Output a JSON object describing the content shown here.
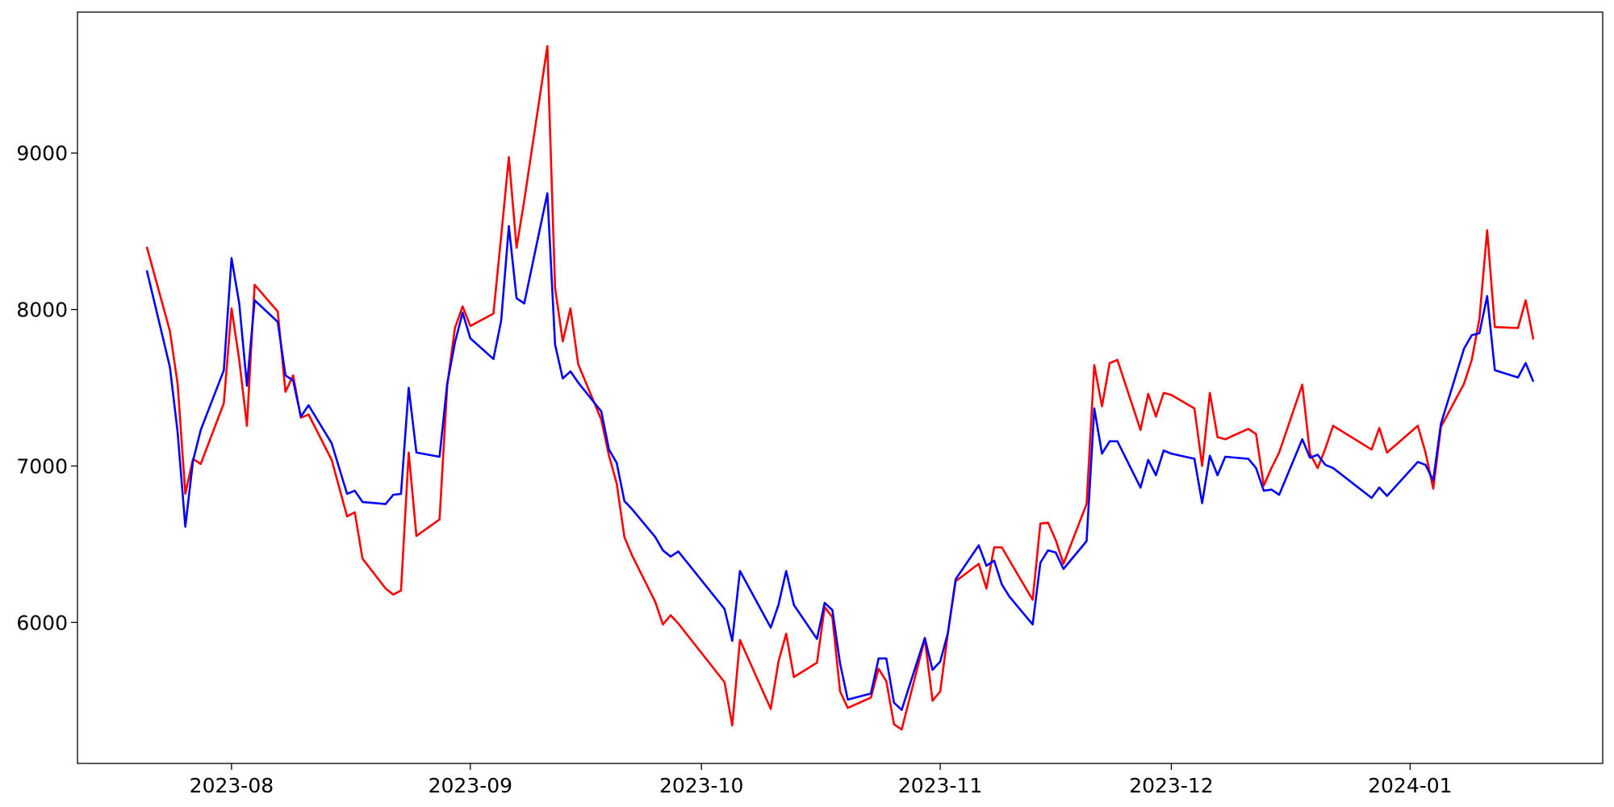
{
  "chart_data": {
    "type": "line",
    "x": [
      "2023-07-21",
      "2023-07-24",
      "2023-07-25",
      "2023-07-26",
      "2023-07-27",
      "2023-07-28",
      "2023-07-31",
      "2023-08-01",
      "2023-08-02",
      "2023-08-03",
      "2023-08-04",
      "2023-08-07",
      "2023-08-08",
      "2023-08-09",
      "2023-08-10",
      "2023-08-11",
      "2023-08-14",
      "2023-08-16",
      "2023-08-17",
      "2023-08-18",
      "2023-08-21",
      "2023-08-22",
      "2023-08-23",
      "2023-08-24",
      "2023-08-25",
      "2023-08-28",
      "2023-08-29",
      "2023-08-30",
      "2023-08-31",
      "2023-09-01",
      "2023-09-04",
      "2023-09-05",
      "2023-09-06",
      "2023-09-07",
      "2023-09-08",
      "2023-09-11",
      "2023-09-12",
      "2023-09-13",
      "2023-09-14",
      "2023-09-15",
      "2023-09-18",
      "2023-09-19",
      "2023-09-20",
      "2023-09-21",
      "2023-09-22",
      "2023-09-25",
      "2023-09-26",
      "2023-09-27",
      "2023-09-28",
      "2023-10-04",
      "2023-10-05",
      "2023-10-06",
      "2023-10-10",
      "2023-10-11",
      "2023-10-12",
      "2023-10-13",
      "2023-10-16",
      "2023-10-17",
      "2023-10-18",
      "2023-10-19",
      "2023-10-20",
      "2023-10-23",
      "2023-10-24",
      "2023-10-25",
      "2023-10-26",
      "2023-10-27",
      "2023-10-30",
      "2023-10-31",
      "2023-11-01",
      "2023-11-02",
      "2023-11-03",
      "2023-11-06",
      "2023-11-07",
      "2023-11-08",
      "2023-11-09",
      "2023-11-10",
      "2023-11-13",
      "2023-11-14",
      "2023-11-15",
      "2023-11-16",
      "2023-11-17",
      "2023-11-20",
      "2023-11-21",
      "2023-11-22",
      "2023-11-23",
      "2023-11-24",
      "2023-11-27",
      "2023-11-28",
      "2023-11-29",
      "2023-11-30",
      "2023-12-01",
      "2023-12-04",
      "2023-12-05",
      "2023-12-06",
      "2023-12-07",
      "2023-12-08",
      "2023-12-11",
      "2023-12-12",
      "2023-12-13",
      "2023-12-14",
      "2023-12-15",
      "2023-12-18",
      "2023-12-19",
      "2023-12-20",
      "2023-12-21",
      "2023-12-22",
      "2023-12-27",
      "2023-12-28",
      "2023-12-29",
      "2024-01-02",
      "2024-01-03",
      "2024-01-04",
      "2024-01-05",
      "2024-01-08",
      "2024-01-09",
      "2024-01-10",
      "2024-01-11",
      "2024-01-12",
      "2024-01-15",
      "2024-01-16",
      "2024-01-17"
    ],
    "series": [
      {
        "color": "#ff0000",
        "values": [
          8401,
          7862,
          7526,
          6822,
          7046,
          7013,
          7401,
          8007,
          7678,
          7257,
          8158,
          7987,
          7474,
          7579,
          7309,
          7329,
          7039,
          6678,
          6704,
          6408,
          6217,
          6178,
          6204,
          7086,
          6553,
          6658,
          7513,
          7882,
          8020,
          7895,
          7974,
          8467,
          8974,
          8395,
          8697,
          9684,
          8138,
          7796,
          8007,
          7651,
          7296,
          7066,
          6888,
          6546,
          6428,
          6132,
          5987,
          6046,
          5993,
          5618,
          5342,
          5888,
          5447,
          5750,
          5928,
          5651,
          5743,
          6099,
          6033,
          5559,
          5454,
          5520,
          5704,
          5625,
          5349,
          5316,
          5895,
          5500,
          5559,
          5934,
          6263,
          6375,
          6217,
          6480,
          6480,
          6395,
          6145,
          6632,
          6638,
          6526,
          6375,
          6757,
          7645,
          7382,
          7658,
          7678,
          7230,
          7461,
          7316,
          7467,
          7454,
          7368,
          7000,
          7467,
          7184,
          7171,
          7237,
          7204,
          6875,
          6987,
          7086,
          7520,
          7079,
          6987,
          7112,
          7257,
          7105,
          7243,
          7086,
          7257,
          7086,
          6855,
          7250,
          7526,
          7678,
          7941,
          8507,
          7888,
          7882,
          8059,
          7809
        ]
      },
      {
        "color": "#0000ff",
        "values": [
          8250,
          7632,
          7217,
          6612,
          7033,
          7230,
          7612,
          8329,
          8039,
          7513,
          8059,
          7921,
          7579,
          7546,
          7316,
          7388,
          7145,
          6822,
          6842,
          6770,
          6757,
          6816,
          6822,
          7500,
          7086,
          7059,
          7526,
          7789,
          7980,
          7816,
          7684,
          7928,
          8533,
          8072,
          8039,
          8743,
          7776,
          7559,
          7605,
          7533,
          7349,
          7105,
          7020,
          6776,
          6724,
          6546,
          6461,
          6421,
          6454,
          6086,
          5882,
          6329,
          5967,
          6112,
          6329,
          6112,
          5895,
          6125,
          6079,
          5737,
          5507,
          5546,
          5770,
          5770,
          5487,
          5441,
          5901,
          5697,
          5750,
          5934,
          6276,
          6493,
          6362,
          6395,
          6243,
          6164,
          5987,
          6382,
          6461,
          6447,
          6342,
          6520,
          7368,
          7079,
          7158,
          7158,
          6862,
          7039,
          6941,
          7099,
          7079,
          7046,
          6763,
          7066,
          6941,
          7059,
          7046,
          6987,
          6842,
          6849,
          6816,
          7171,
          7053,
          7072,
          7007,
          6987,
          6796,
          6862,
          6809,
          7026,
          7007,
          6908,
          7270,
          7750,
          7836,
          7849,
          8086,
          7612,
          7566,
          7658,
          7539
        ]
      }
    ],
    "xlim": [
      "2023-07-12",
      "2024-01-26"
    ],
    "xticks": [
      {
        "value": "2023-08-01",
        "label": "2023-08"
      },
      {
        "value": "2023-09-01",
        "label": "2023-09"
      },
      {
        "value": "2023-10-01",
        "label": "2023-10"
      },
      {
        "value": "2023-11-01",
        "label": "2023-11"
      },
      {
        "value": "2023-12-01",
        "label": "2023-12"
      },
      {
        "value": "2024-01-01",
        "label": "2024-01"
      }
    ],
    "ylim": [
      5099,
      9901
    ],
    "yticks": [
      6000,
      7000,
      8000,
      9000
    ],
    "grid": false
  }
}
